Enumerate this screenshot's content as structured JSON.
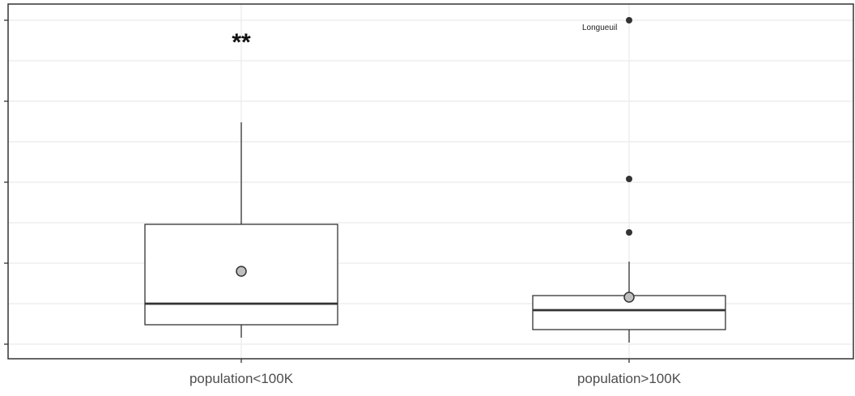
{
  "chart_data": {
    "type": "box",
    "title": "",
    "xlabel": "",
    "ylabel": "",
    "ylim": [
      0,
      20
    ],
    "y_ticks": [
      0,
      5,
      10,
      15,
      20
    ],
    "y_tick_labels_visible": false,
    "grid": true,
    "categories": [
      "population<100K",
      "population>100K"
    ],
    "boxes": [
      {
        "category": "population<100K",
        "whisker_low": 0.4,
        "q1": 1.2,
        "median": 2.5,
        "q3": 7.4,
        "whisker_high": 13.7,
        "mean": 4.5,
        "outliers": [],
        "significance": "**"
      },
      {
        "category": "population>100K",
        "whisker_low": 0.1,
        "q1": 0.9,
        "median": 2.1,
        "q3": 3.0,
        "whisker_high": 5.1,
        "mean": 2.9,
        "outliers": [
          {
            "value": 6.9,
            "label": ""
          },
          {
            "value": 10.2,
            "label": ""
          },
          {
            "value": 20.0,
            "label": "Longueuil"
          }
        ],
        "significance": ""
      }
    ],
    "colors": {
      "box_fill": "#ffffff",
      "box_stroke": "#333333",
      "median": "#333333",
      "mean_fill": "#bfbfbf",
      "mean_stroke": "#333333",
      "outlier": "#333333",
      "grid": "#ebebeb",
      "panel_border": "#333333"
    }
  }
}
